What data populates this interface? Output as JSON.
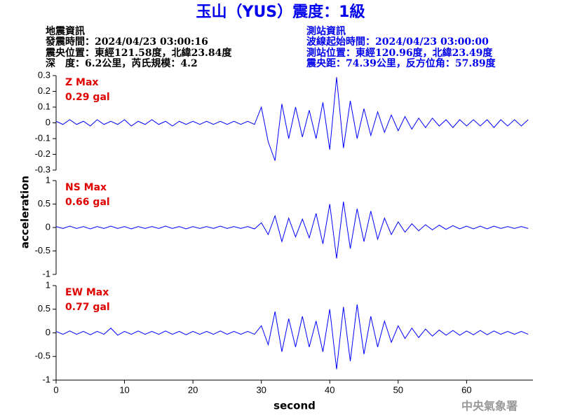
{
  "header": {
    "title": "玉山（YUS）震度：1級",
    "left": [
      "地震資訊",
      "發震時間：2024/04/23 03:00:16",
      "震央位置：東經121.58度，北緯23.84度",
      "深　度：6.2公里，芮氏規模：4.2"
    ],
    "right": [
      "測站資訊",
      "波線起始時間：2024/04/23 03:00:00",
      "測站位置：東經120.96度，北緯23.49度",
      "震央距：74.39公里，反方位角：57.89度"
    ]
  },
  "ylabel": "acceleration",
  "footer": "中央氣象署",
  "chart_data": [
    {
      "type": "line",
      "label": "Z Max",
      "max_label": "0.29 gal",
      "ylim": [
        -0.3,
        0.3
      ],
      "yticks": [
        0.3,
        0.2,
        0.1,
        0,
        -0.1,
        -0.2,
        -0.3
      ],
      "xlim": [
        0,
        69.7
      ],
      "x": [
        0,
        1,
        2,
        3,
        4,
        5,
        6,
        7,
        8,
        9,
        10,
        11,
        12,
        13,
        14,
        15,
        16,
        17,
        18,
        19,
        20,
        21,
        22,
        23,
        24,
        25,
        26,
        27,
        28,
        29,
        30,
        31,
        32,
        33,
        34,
        35,
        36,
        37,
        38,
        39,
        40,
        41,
        42,
        43,
        44,
        45,
        46,
        47,
        48,
        49,
        50,
        51,
        52,
        53,
        54,
        55,
        56,
        57,
        58,
        59,
        60,
        61,
        62,
        63,
        64,
        65,
        66,
        67,
        68,
        69
      ],
      "series": [
        {
          "color": "#0000ff",
          "values": [
            0.01,
            -0.01,
            0.02,
            -0.01,
            0.01,
            -0.02,
            0.02,
            -0.01,
            0.01,
            -0.01,
            0.02,
            -0.02,
            0.01,
            -0.01,
            0.02,
            -0.01,
            0.01,
            -0.02,
            0.01,
            -0.01,
            0.01,
            -0.01,
            0.01,
            -0.01,
            0.01,
            -0.01,
            0.01,
            -0.01,
            0.01,
            -0.01,
            0.1,
            -0.12,
            -0.24,
            0.12,
            -0.1,
            0.1,
            -0.09,
            0.08,
            -0.1,
            0.13,
            -0.17,
            0.29,
            -0.16,
            0.14,
            -0.1,
            0.09,
            -0.08,
            0.07,
            -0.06,
            0.05,
            -0.05,
            0.04,
            -0.04,
            0.03,
            -0.03,
            0.03,
            -0.02,
            0.02,
            -0.03,
            0.02,
            -0.02,
            0.02,
            -0.02,
            0.02,
            -0.03,
            0.02,
            -0.02,
            0.02,
            -0.02,
            0.02
          ]
        }
      ]
    },
    {
      "type": "line",
      "label": "NS Max",
      "max_label": "0.66 gal",
      "ylim": [
        -1,
        1
      ],
      "yticks": [
        1,
        0.5,
        0,
        -0.5,
        -1
      ],
      "xlim": [
        0,
        69.7
      ],
      "x": [
        0,
        1,
        2,
        3,
        4,
        5,
        6,
        7,
        8,
        9,
        10,
        11,
        12,
        13,
        14,
        15,
        16,
        17,
        18,
        19,
        20,
        21,
        22,
        23,
        24,
        25,
        26,
        27,
        28,
        29,
        30,
        31,
        32,
        33,
        34,
        35,
        36,
        37,
        38,
        39,
        40,
        41,
        42,
        43,
        44,
        45,
        46,
        47,
        48,
        49,
        50,
        51,
        52,
        53,
        54,
        55,
        56,
        57,
        58,
        59,
        60,
        61,
        62,
        63,
        64,
        65,
        66,
        67,
        68,
        69
      ],
      "series": [
        {
          "color": "#0000ff",
          "values": [
            0.02,
            -0.02,
            0.03,
            -0.02,
            0.02,
            -0.03,
            0.02,
            -0.02,
            0.03,
            -0.02,
            0.02,
            -0.03,
            0.02,
            -0.02,
            0.02,
            -0.02,
            0.03,
            -0.02,
            0.02,
            -0.03,
            0.02,
            -0.02,
            0.02,
            -0.02,
            0.03,
            -0.02,
            0.02,
            -0.02,
            0.02,
            -0.03,
            0.1,
            -0.15,
            0.25,
            -0.3,
            0.2,
            -0.2,
            0.18,
            -0.22,
            0.3,
            -0.35,
            0.5,
            -0.66,
            0.55,
            -0.45,
            0.4,
            -0.3,
            0.35,
            -0.25,
            0.2,
            -0.15,
            0.12,
            -0.1,
            0.08,
            -0.07,
            0.06,
            -0.05,
            0.05,
            -0.04,
            0.04,
            -0.03,
            0.03,
            -0.03,
            0.03,
            -0.03,
            0.03,
            -0.02,
            0.02,
            -0.02,
            0.02,
            -0.02
          ]
        }
      ]
    },
    {
      "type": "line",
      "label": "EW Max",
      "max_label": "0.77 gal",
      "ylim": [
        -1,
        1
      ],
      "yticks": [
        1,
        0.5,
        0,
        -0.5,
        -1
      ],
      "xlim": [
        0,
        69.7
      ],
      "xticks": [
        0,
        10,
        20,
        30,
        40,
        50,
        60
      ],
      "xlabel": "second",
      "x": [
        0,
        1,
        2,
        3,
        4,
        5,
        6,
        7,
        8,
        9,
        10,
        11,
        12,
        13,
        14,
        15,
        16,
        17,
        18,
        19,
        20,
        21,
        22,
        23,
        24,
        25,
        26,
        27,
        28,
        29,
        30,
        31,
        32,
        33,
        34,
        35,
        36,
        37,
        38,
        39,
        40,
        41,
        42,
        43,
        44,
        45,
        46,
        47,
        48,
        49,
        50,
        51,
        52,
        53,
        54,
        55,
        56,
        57,
        58,
        59,
        60,
        61,
        62,
        63,
        64,
        65,
        66,
        67,
        68,
        69
      ],
      "series": [
        {
          "color": "#0000ff",
          "values": [
            0.03,
            -0.03,
            0.04,
            -0.03,
            0.03,
            -0.04,
            0.03,
            -0.03,
            0.1,
            -0.05,
            0.03,
            -0.03,
            0.04,
            -0.03,
            0.03,
            -0.03,
            0.04,
            -0.03,
            0.03,
            -0.04,
            0.03,
            -0.03,
            0.03,
            -0.03,
            0.04,
            -0.03,
            0.03,
            -0.03,
            0.03,
            -0.03,
            0.15,
            -0.25,
            0.45,
            -0.4,
            0.3,
            -0.3,
            0.35,
            -0.3,
            0.25,
            -0.4,
            0.5,
            -0.77,
            0.55,
            -0.6,
            0.6,
            -0.45,
            0.35,
            -0.3,
            0.25,
            -0.2,
            0.15,
            -0.12,
            0.1,
            -0.1,
            0.08,
            -0.07,
            0.06,
            -0.05,
            0.05,
            -0.05,
            0.04,
            -0.04,
            0.05,
            -0.04,
            0.04,
            -0.03,
            0.03,
            -0.03,
            0.03,
            -0.03
          ]
        }
      ]
    }
  ]
}
